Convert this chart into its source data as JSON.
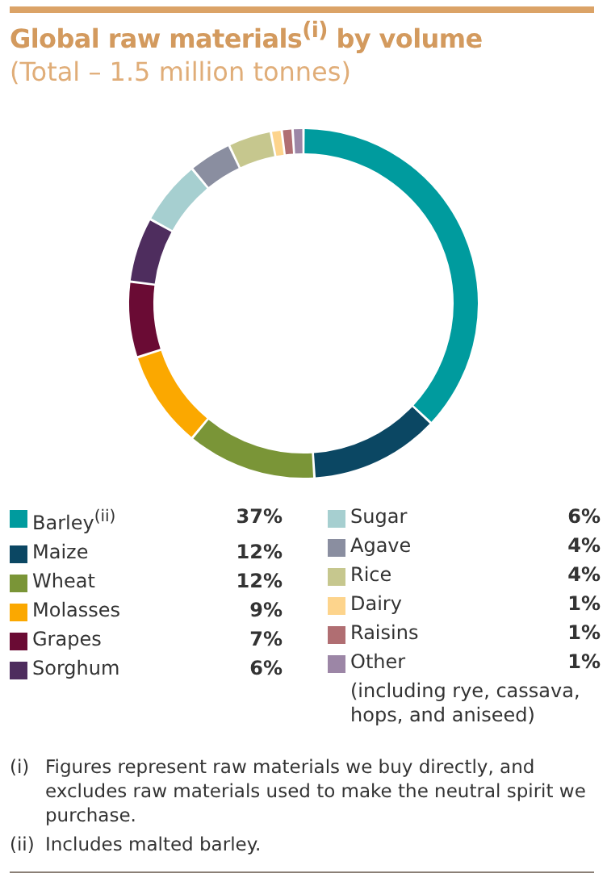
{
  "chart_data": {
    "type": "donut",
    "title": "Global raw materials$^{(i)}$ by volume",
    "subtitle": "(Total – 1.5 million tonnes)",
    "categories": [
      "Barley$^{(ii)}$",
      "Maize",
      "Wheat",
      "Molasses",
      "Grapes",
      "Sorghum",
      "Sugar",
      "Agave",
      "Rice",
      "Dairy",
      "Raisins",
      "Other"
    ],
    "values": [
      37,
      12,
      12,
      9,
      7,
      6,
      6,
      4,
      4,
      1,
      1,
      1
    ],
    "colors": [
      "#009b9e",
      "#0b4763",
      "#7a9537",
      "#fba800",
      "#6a0b34",
      "#4e2d5e",
      "#a6cfd0",
      "#8a8ea0",
      "#c6c78e",
      "#fdd48c",
      "#b06e72",
      "#9c86a6"
    ],
    "value_labels": [
      "37%",
      "12%",
      "12%",
      "9%",
      "7%",
      "6%",
      "6%",
      "4%",
      "4%",
      "1%",
      "1%",
      "1%"
    ],
    "legend": "bottom",
    "annotations": [
      "(including rye, cassava, hops, and aniseed)",
      "(i)\tFigures represent raw materials we buy directly, and excludes raw materials used to make the neutral spirit we purchase.",
      "(ii)\tIncludes malted barley."
    ]
  }
}
